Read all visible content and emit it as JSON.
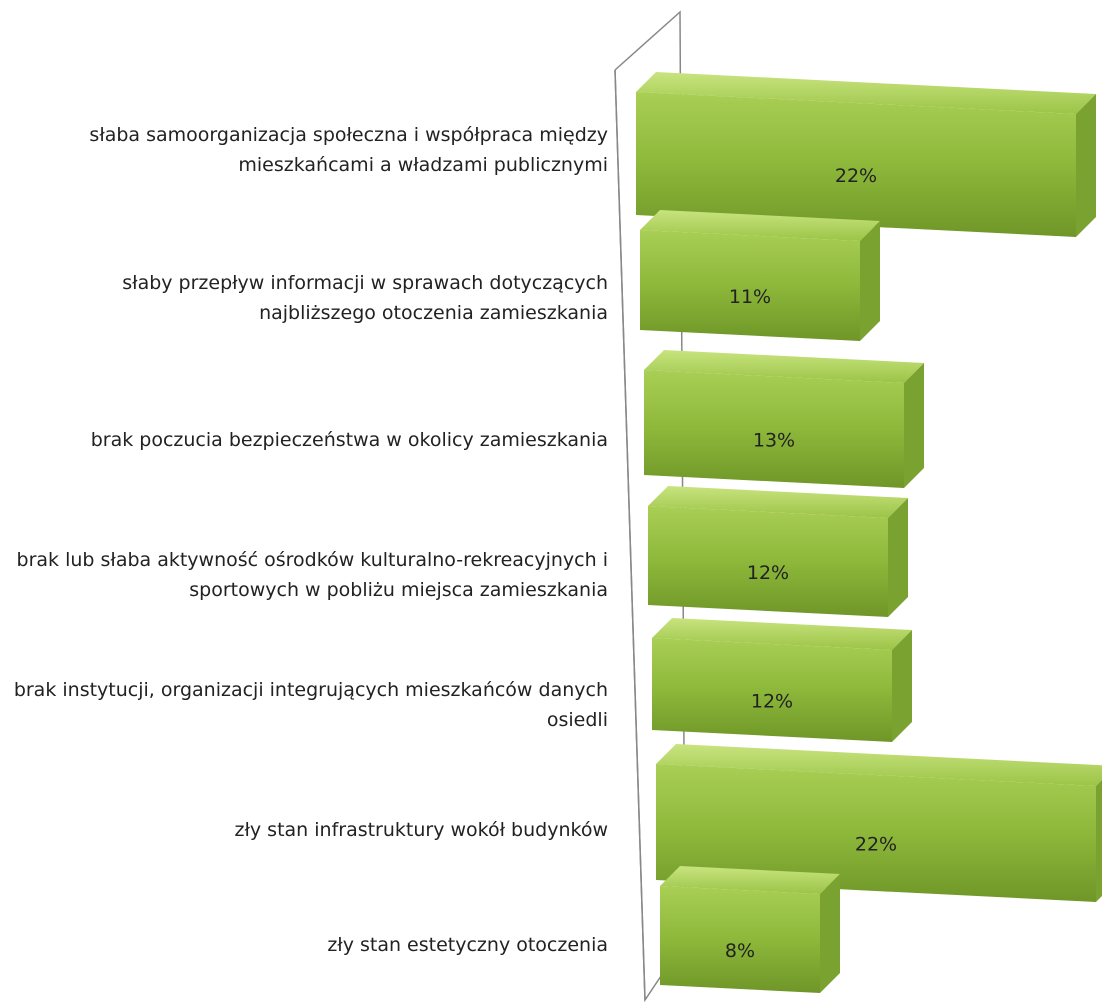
{
  "chart_data": {
    "type": "bar",
    "orientation": "horizontal",
    "color": "#8db83a",
    "categories": [
      "słaba samoorganizacja społeczna i współpraca między mieszkańcami a władzami publicznymi",
      "słaby przepływ informacji w sprawach dotyczących najbliższego otoczenia zamieszkania",
      "brak poczucia bezpieczeństwa w okolicy zamieszkania",
      "brak lub słaba aktywność ośrodków kulturalno-rekreacyjnych i sportowych w pobliżu miejsca zamieszkania",
      "brak instytucji, organizacji integrujących mieszkańców danych osiedli",
      "zły stan infrastruktury wokół budynków",
      "zły stan estetyczny otoczenia"
    ],
    "values": [
      22,
      11,
      13,
      12,
      12,
      22,
      8
    ],
    "value_labels": [
      "22%",
      "11%",
      "13%",
      "12%",
      "12%",
      "22%",
      "8%"
    ]
  }
}
